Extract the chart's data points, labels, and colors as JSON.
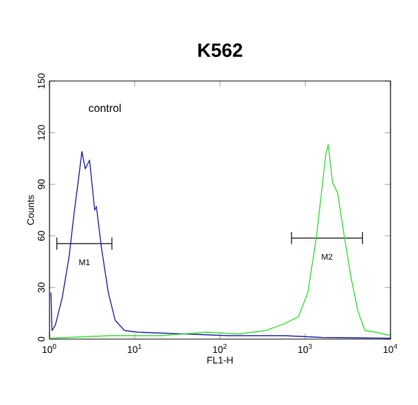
{
  "chart_data": {
    "type": "line",
    "title": "**K562**",
    "xlabel": "FL1-H",
    "ylabel": "Counts",
    "log": "x",
    "annotations": [
      "control"
    ],
    "xlim": [
      1,
      10000
    ],
    "ylim": [
      0,
      150
    ],
    "xticks": [
      {
        "value": 1,
        "label": "10$^{0}$"
      },
      {
        "value": 10,
        "label": "10$^{1}$"
      },
      {
        "value": 100,
        "label": "10$^{2}$"
      },
      {
        "value": 1000,
        "label": "10$^{3}$"
      },
      {
        "value": 10000,
        "label": "10$^{4}$"
      }
    ],
    "yticks": [
      0,
      30,
      60,
      90,
      120,
      150
    ],
    "series": [
      {
        "name": "M1",
        "color": "#000000",
        "x": [
          1.22,
          5.4
        ],
        "values": [
          55.5,
          55.5
        ],
        "errors": [
          3.5,
          3.5
        ]
      },
      {
        "name": "M2",
        "color": "#000000",
        "x": [
          690,
          4700
        ],
        "values": [
          58.7,
          58.7
        ],
        "errors": [
          3.5,
          3.5
        ]
      },
      {
        "color": "#1c1ca8",
        "x": [
          1.04,
          1.07,
          1.17,
          1.41,
          1.7,
          1.93,
          2.19,
          2.4,
          2.63,
          2.95,
          3.39,
          3.55,
          4.07,
          4.9,
          5.89,
          7.59,
          11,
          38,
          126,
          575,
          1550,
          10000
        ],
        "values": [
          27,
          5,
          8,
          24,
          48,
          72,
          93,
          109,
          99,
          104,
          75,
          77,
          53,
          27,
          11,
          5,
          4,
          3,
          2,
          2,
          1,
          0.5
        ]
      },
      {
        "color": "#33dd33",
        "x": [
          1,
          5.13,
          20,
          69,
          166,
          347,
          575,
          832,
          1072,
          1349,
          1549,
          1738,
          1862,
          2089,
          2399,
          2884,
          3467,
          4169,
          5012,
          6761,
          10000
        ],
        "values": [
          0.5,
          2,
          2,
          4,
          3,
          5,
          9,
          13,
          27,
          59,
          85,
          107,
          113,
          91,
          85,
          59,
          35,
          16,
          5,
          4,
          2
        ]
      }
    ]
  }
}
